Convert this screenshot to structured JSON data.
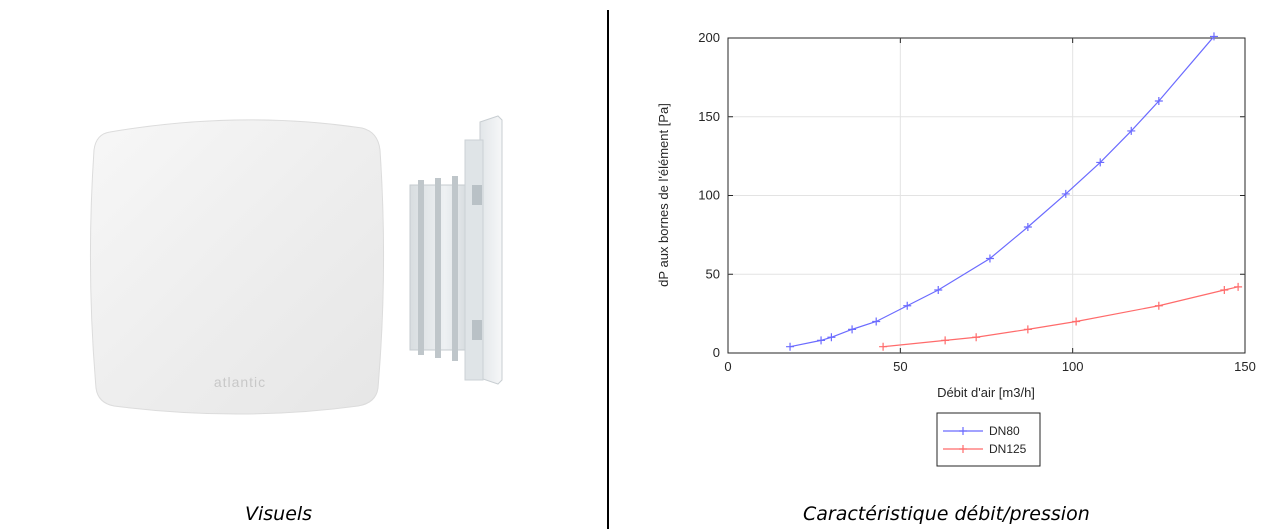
{
  "left_panel": {
    "caption": "Visuels",
    "product_logo": "atlantic"
  },
  "right_panel": {
    "caption": "Caractéristique débit/pression"
  },
  "chart_data": {
    "type": "line",
    "xlabel": "Débit d'air [m3/h]",
    "ylabel": "dP aux bornes de l'élément [Pa]",
    "xlim": [
      0,
      150
    ],
    "ylim": [
      0,
      200
    ],
    "xticks": [
      0,
      50,
      100,
      150
    ],
    "yticks": [
      0,
      50,
      100,
      150,
      200
    ],
    "grid": true,
    "legend_position": "bottom-outside",
    "series": [
      {
        "name": "DN80",
        "color": "#6b6bff",
        "marker": "+",
        "x": [
          18,
          27,
          30,
          36,
          43,
          52,
          61,
          76,
          87,
          98,
          108,
          117,
          125,
          141
        ],
        "y": [
          4,
          8,
          10,
          15,
          20,
          30,
          40,
          60,
          80,
          101,
          121,
          141,
          160,
          201
        ]
      },
      {
        "name": "DN125",
        "color": "#ff6b6b",
        "marker": "+",
        "x": [
          45,
          63,
          72,
          87,
          101,
          125,
          144,
          148
        ],
        "y": [
          4,
          8,
          10,
          15,
          20,
          30,
          40,
          42
        ]
      }
    ]
  }
}
